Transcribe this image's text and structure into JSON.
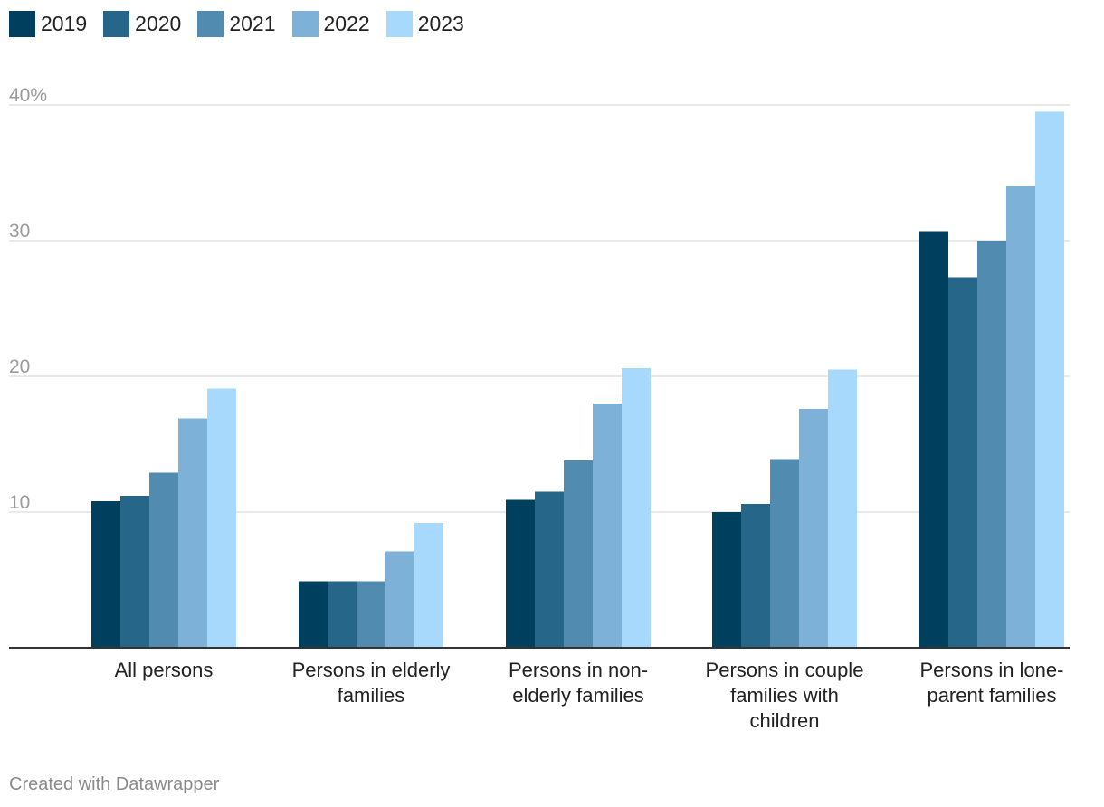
{
  "chart_data": {
    "type": "bar",
    "title": "",
    "xlabel": "",
    "ylabel": "",
    "ylim": [
      0,
      40
    ],
    "yticks": [
      {
        "value": 10,
        "label": "10"
      },
      {
        "value": 20,
        "label": "20"
      },
      {
        "value": 30,
        "label": "30"
      },
      {
        "value": 40,
        "label": "40%"
      }
    ],
    "grid": true,
    "legend_position": "top-left",
    "categories": [
      [
        "All persons"
      ],
      [
        "Persons in elderly",
        "families"
      ],
      [
        "Persons in non-",
        "elderly families"
      ],
      [
        "Persons in couple",
        "families with",
        "children"
      ],
      [
        "Persons in lone-",
        "parent families"
      ]
    ],
    "series": [
      {
        "name": "2019",
        "color": "#00405f",
        "values": [
          10.8,
          4.9,
          10.9,
          10.0,
          30.7
        ]
      },
      {
        "name": "2020",
        "color": "#266688",
        "values": [
          11.2,
          4.9,
          11.5,
          10.6,
          27.3
        ]
      },
      {
        "name": "2021",
        "color": "#528bb0",
        "values": [
          12.9,
          4.9,
          13.8,
          13.9,
          30.0
        ]
      },
      {
        "name": "2022",
        "color": "#7db1d7",
        "values": [
          16.9,
          7.1,
          18.0,
          17.6,
          34.0
        ]
      },
      {
        "name": "2023",
        "color": "#a6d9fb",
        "values": [
          19.1,
          9.2,
          20.6,
          20.5,
          39.5
        ]
      }
    ]
  },
  "footer": {
    "credit": "Created with Datawrapper"
  }
}
